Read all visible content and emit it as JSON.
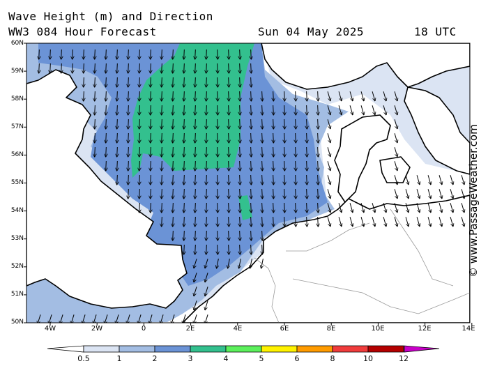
{
  "header": {
    "title_line1": "Wave Height (m) and Direction",
    "title_line2": "WW3 084 Hour Forecast",
    "date": "Sun 04 May 2025",
    "time": "18 UTC"
  },
  "map": {
    "lat_labels": [
      "60N",
      "59N",
      "58N",
      "57N",
      "56N",
      "55N",
      "54N",
      "53N",
      "52N",
      "51N",
      "50N"
    ],
    "lon_labels": [
      "4W",
      "2W",
      "0",
      "2E",
      "4E",
      "6E",
      "8E",
      "10E",
      "12E",
      "14E"
    ],
    "wave_direction": "arrows point mostly south (from north)",
    "colors": {
      "land": "#ffffff",
      "sea_lt_05": "#ffffff",
      "h05_1": "#dbe4f3",
      "h1_2": "#a3bde3",
      "h2_3": "#6b93d6",
      "h3_4": "#33c08e",
      "h4_5": "#5cf05c",
      "coast": "#000000"
    }
  },
  "credit": "© www.PassageWeather.com",
  "legend": {
    "labels": [
      "0.5",
      "1",
      "2",
      "3",
      "4",
      "5",
      "6",
      "8",
      "10",
      "12"
    ],
    "colors": [
      "#dbe4f3",
      "#a3bde3",
      "#6b93d6",
      "#33c08e",
      "#5cf05c",
      "#fff200",
      "#ff9b00",
      "#f03c3c",
      "#b40000",
      "#c800c8"
    ]
  }
}
